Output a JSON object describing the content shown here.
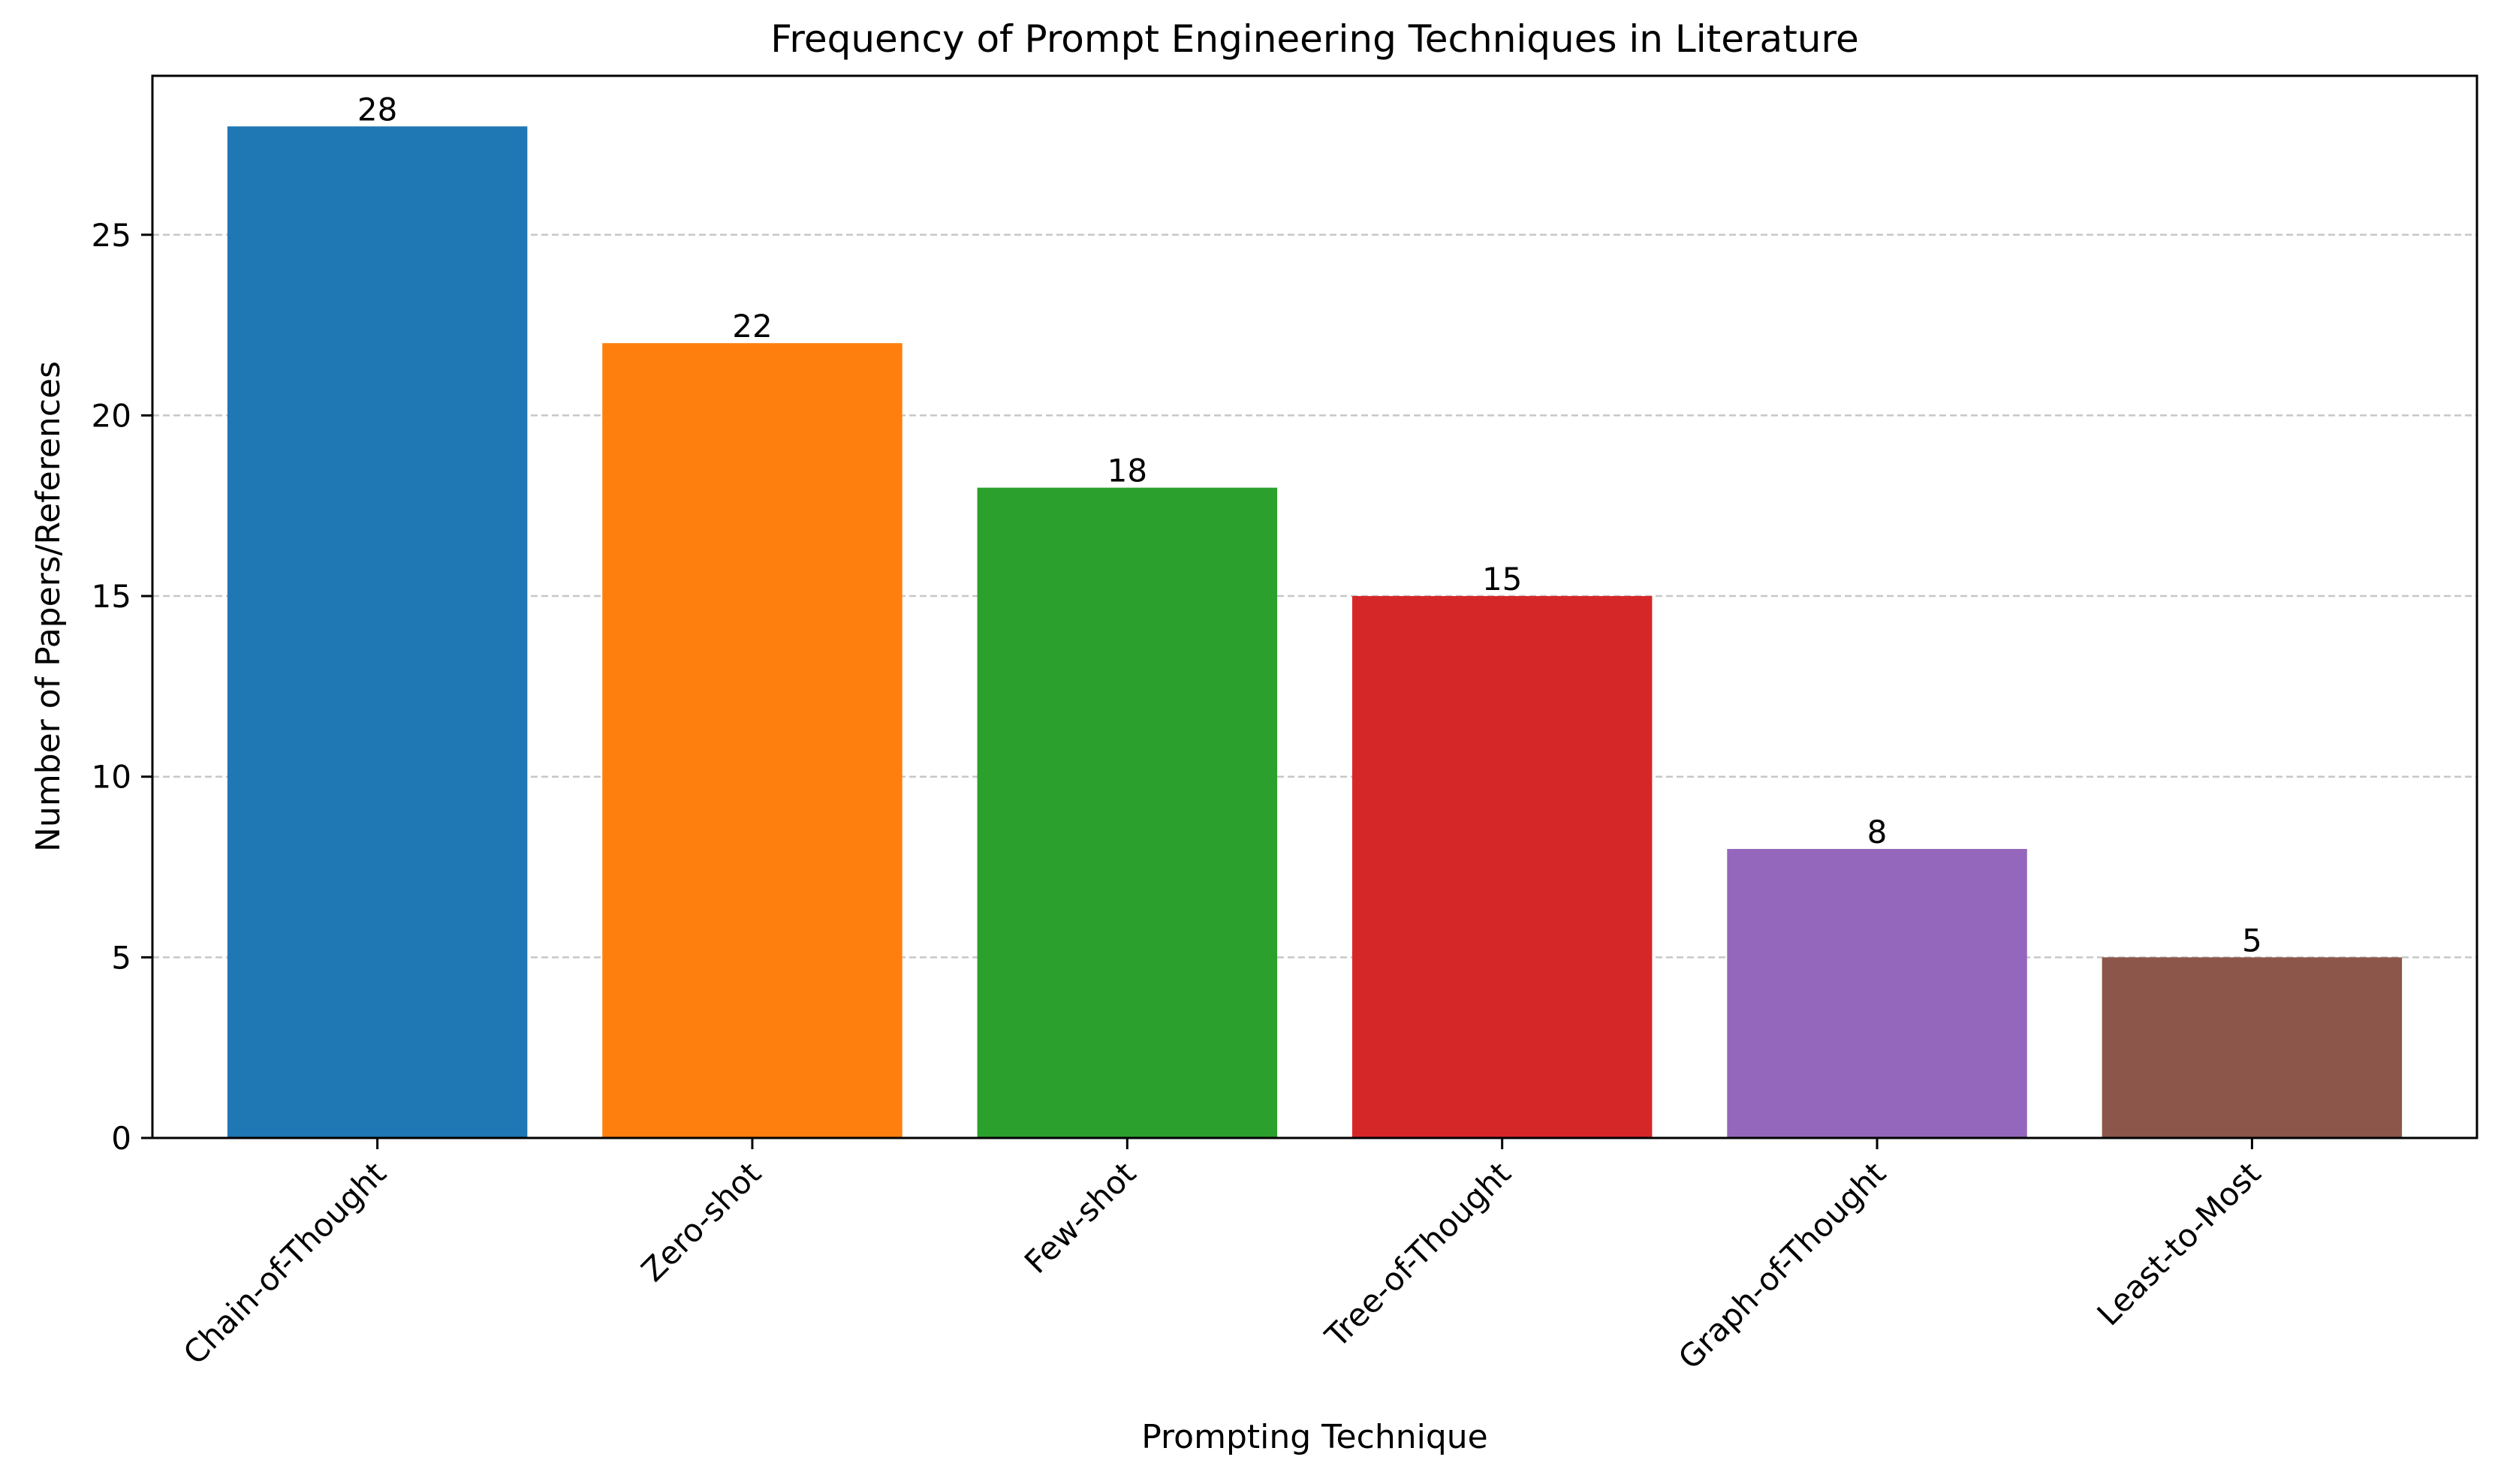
{
  "chart_data": {
    "type": "bar",
    "title": "Frequency of Prompt Engineering Techniques in Literature",
    "xlabel": "Prompting Technique",
    "ylabel": "Number of Papers/References",
    "categories": [
      "Chain-of-Thought",
      "Zero-shot",
      "Few-shot",
      "Tree-of-Thought",
      "Graph-of-Thought",
      "Least-to-Most"
    ],
    "values": [
      28,
      22,
      18,
      15,
      8,
      5
    ],
    "colors": [
      "#1f77b4",
      "#ff7f0e",
      "#2ca02c",
      "#d62728",
      "#9467bd",
      "#8c564b"
    ],
    "ylim": [
      0,
      29.4
    ],
    "yticks": [
      0,
      5,
      10,
      15,
      20,
      25
    ],
    "grid": "y-dashed",
    "legend": "none"
  }
}
